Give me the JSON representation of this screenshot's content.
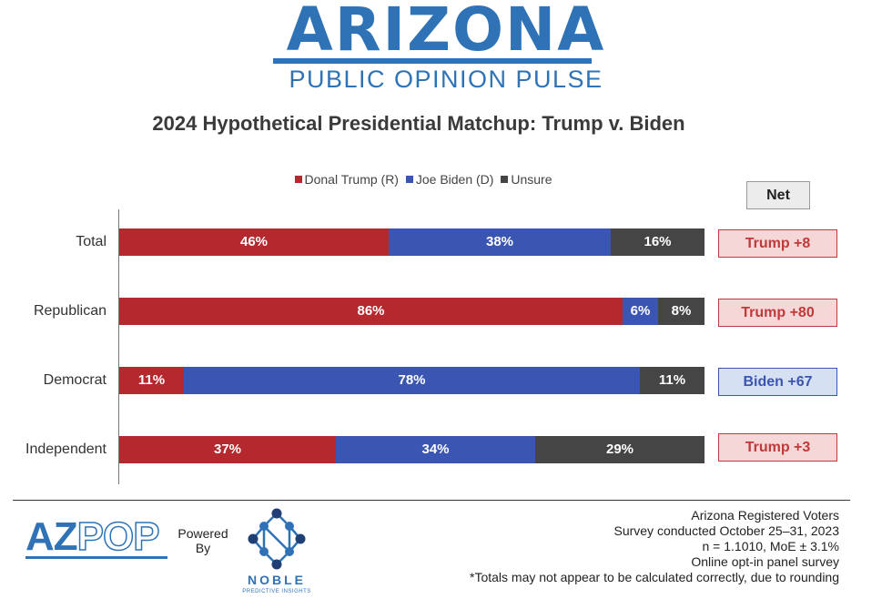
{
  "logo": {
    "title": "ARIZONA",
    "subtitle": "PUBLIC OPINION PULSE"
  },
  "colors": {
    "trump": "#b5282e",
    "biden": "#3b55b3",
    "unsure": "#454545",
    "brand": "#2f73b6"
  },
  "chart_data": {
    "type": "bar",
    "orientation": "horizontal-stacked-100",
    "title": "2024 Hypothetical Presidential Matchup: Trump v. Biden",
    "legend": [
      "Donal Trump (R)",
      "Joe Biden (D)",
      "Unsure"
    ],
    "legend_position": "top",
    "categories": [
      "Total",
      "Republican",
      "Democrat",
      "Independent"
    ],
    "series": [
      {
        "name": "Donal Trump (R)",
        "values": [
          46,
          86,
          11,
          37
        ],
        "labels": [
          "46%",
          "86%",
          "11%",
          "37%"
        ]
      },
      {
        "name": "Joe Biden (D)",
        "values": [
          38,
          6,
          78,
          34
        ],
        "labels": [
          "38%",
          "6%",
          "78%",
          "34%"
        ]
      },
      {
        "name": "Unsure",
        "values": [
          16,
          8,
          11,
          29
        ],
        "labels": [
          "16%",
          "8%",
          "11%",
          "29%"
        ]
      }
    ],
    "net_header": "Net",
    "net": [
      {
        "label": "Trump +8",
        "leader": "trump"
      },
      {
        "label": "Trump +80",
        "leader": "trump"
      },
      {
        "label": "Biden +67",
        "leader": "biden"
      },
      {
        "label": "Trump +3",
        "leader": "trump"
      }
    ],
    "xlim": [
      0,
      100
    ],
    "grid": false
  },
  "footer": {
    "az_logo": {
      "left": "AZ",
      "right": "POP"
    },
    "powered_by": [
      "Powered",
      "By"
    ],
    "noble": {
      "name": "NOBLE",
      "tagline": "PREDICTIVE INSIGHTS"
    },
    "notes": [
      "Arizona Registered Voters",
      "Survey conducted October 25–31, 2023",
      "n = 1.1010, MoE ± 3.1%",
      "Online opt-in panel survey",
      "*Totals may not appear to be calculated correctly, due to rounding"
    ]
  }
}
